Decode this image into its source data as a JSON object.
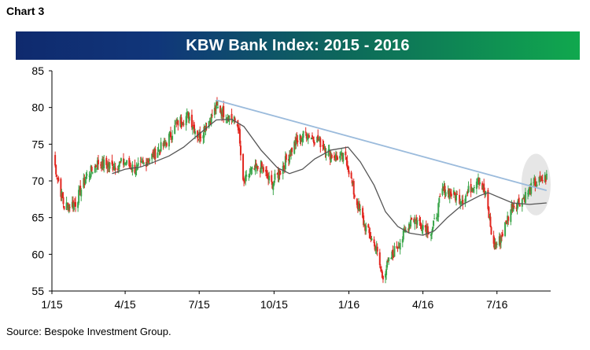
{
  "header": {
    "chart_label": "Chart 3"
  },
  "footer": {
    "source": "Source: Bespoke Investment Group."
  },
  "colors": {
    "up": "#3aa54a",
    "down": "#e2261f",
    "trend_line": "#9bbbdc",
    "moving_average": "#555555",
    "highlight": "#e6e6e6",
    "banner_start": "#0f2a6e",
    "banner_end": "#10a84e"
  },
  "chart_data": {
    "type": "candlestick",
    "title": "KBW Bank Index: 2015 - 2016",
    "x_ticks": [
      "1/15",
      "4/15",
      "7/15",
      "10/15",
      "1/16",
      "4/16",
      "7/16"
    ],
    "y_ticks": [
      55,
      60,
      65,
      70,
      75,
      80,
      85
    ],
    "ylim": [
      55,
      85
    ],
    "x_range": [
      "2015-01-01",
      "2016-09-05"
    ],
    "grid": false,
    "close_anchors": [
      [
        "2015-01-02",
        73.5
      ],
      [
        "2015-01-08",
        70.5
      ],
      [
        "2015-01-16",
        66.5
      ],
      [
        "2015-01-30",
        67.0
      ],
      [
        "2015-02-12",
        70.5
      ],
      [
        "2015-02-27",
        72.5
      ],
      [
        "2015-03-16",
        72.0
      ],
      [
        "2015-03-31",
        72.5
      ],
      [
        "2015-04-15",
        71.5
      ],
      [
        "2015-04-30",
        73.0
      ],
      [
        "2015-05-20",
        75.0
      ],
      [
        "2015-06-05",
        78.0
      ],
      [
        "2015-06-18",
        79.0
      ],
      [
        "2015-06-30",
        76.0
      ],
      [
        "2015-07-15",
        78.5
      ],
      [
        "2015-07-22",
        80.0
      ],
      [
        "2015-08-05",
        79.0
      ],
      [
        "2015-08-18",
        77.5
      ],
      [
        "2015-08-24",
        69.5
      ],
      [
        "2015-09-01",
        71.0
      ],
      [
        "2015-09-15",
        72.0
      ],
      [
        "2015-09-28",
        69.5
      ],
      [
        "2015-10-12",
        72.0
      ],
      [
        "2015-10-26",
        75.0
      ],
      [
        "2015-11-09",
        76.5
      ],
      [
        "2015-11-25",
        75.5
      ],
      [
        "2015-12-10",
        73.5
      ],
      [
        "2015-12-29",
        73.0
      ],
      [
        "2016-01-08",
        68.0
      ],
      [
        "2016-01-20",
        64.0
      ],
      [
        "2016-02-03",
        61.0
      ],
      [
        "2016-02-11",
        57.0
      ],
      [
        "2016-02-26",
        60.5
      ],
      [
        "2016-03-08",
        62.5
      ],
      [
        "2016-03-18",
        65.0
      ],
      [
        "2016-04-01",
        64.0
      ],
      [
        "2016-04-12",
        63.0
      ],
      [
        "2016-04-26",
        69.0
      ],
      [
        "2016-05-09",
        68.0
      ],
      [
        "2016-05-20",
        67.5
      ],
      [
        "2016-06-08",
        70.5
      ],
      [
        "2016-06-17",
        68.0
      ],
      [
        "2016-06-27",
        61.0
      ],
      [
        "2016-07-05",
        62.0
      ],
      [
        "2016-07-19",
        66.5
      ],
      [
        "2016-08-01",
        67.5
      ],
      [
        "2016-08-16",
        69.5
      ],
      [
        "2016-08-31",
        70.5
      ]
    ],
    "moving_average": [
      [
        "2015-03-16",
        71.0
      ],
      [
        "2015-04-01",
        71.6
      ],
      [
        "2015-04-20",
        71.9
      ],
      [
        "2015-05-05",
        72.5
      ],
      [
        "2015-05-25",
        73.4
      ],
      [
        "2015-06-12",
        74.6
      ],
      [
        "2015-07-01",
        76.4
      ],
      [
        "2015-07-22",
        78.3
      ],
      [
        "2015-08-10",
        78.4
      ],
      [
        "2015-08-25",
        77.4
      ],
      [
        "2015-09-15",
        74.2
      ],
      [
        "2015-10-05",
        71.8
      ],
      [
        "2015-10-20",
        71.0
      ],
      [
        "2015-11-05",
        71.6
      ],
      [
        "2015-11-20",
        73.0
      ],
      [
        "2015-12-10",
        74.2
      ],
      [
        "2015-12-31",
        74.6
      ],
      [
        "2016-01-15",
        72.6
      ],
      [
        "2016-02-01",
        69.4
      ],
      [
        "2016-02-15",
        65.8
      ],
      [
        "2016-03-01",
        63.8
      ],
      [
        "2016-03-15",
        62.9
      ],
      [
        "2016-04-01",
        62.6
      ],
      [
        "2016-04-15",
        63.2
      ],
      [
        "2016-05-01",
        65.0
      ],
      [
        "2016-05-20",
        66.8
      ],
      [
        "2016-06-10",
        68.0
      ],
      [
        "2016-06-20",
        68.4
      ],
      [
        "2016-07-05",
        67.7
      ],
      [
        "2016-07-20",
        67.0
      ],
      [
        "2016-08-10",
        66.8
      ],
      [
        "2016-08-31",
        67.0
      ]
    ],
    "trend_line": {
      "start": [
        "2015-07-22",
        81.0
      ],
      "end": [
        "2016-08-31",
        68.7
      ]
    },
    "highlight_circle": {
      "center": [
        "2016-08-18",
        69.5
      ],
      "radius_days": 18,
      "radius_value": 4.2
    }
  }
}
